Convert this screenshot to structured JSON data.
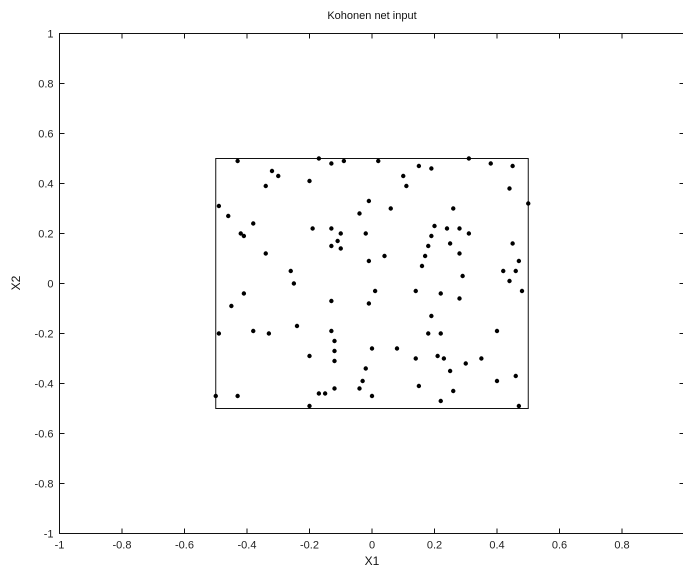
{
  "chart_data": {
    "type": "scatter",
    "title": "Kohonen net input",
    "xlabel": "X1",
    "ylabel": "X2",
    "xlim": [
      -1,
      1
    ],
    "ylim": [
      -1,
      1
    ],
    "x_ticks": [
      "-1",
      "-0.8",
      "-0.6",
      "-0.4",
      "-0.2",
      "0",
      "0.2",
      "0.4",
      "0.6",
      "0.8"
    ],
    "y_ticks": [
      "-1",
      "-0.8",
      "-0.6",
      "-0.4",
      "-0.2",
      "0",
      "0.2",
      "0.4",
      "0.6",
      "0.8",
      "1"
    ],
    "grid": false,
    "inner_box": {
      "x": [
        -0.5,
        0.5
      ],
      "y": [
        -0.5,
        0.5
      ]
    },
    "points": [
      [
        -0.43,
        0.49
      ],
      [
        -0.17,
        0.5
      ],
      [
        -0.13,
        0.48
      ],
      [
        -0.09,
        0.49
      ],
      [
        0.02,
        0.49
      ],
      [
        0.15,
        0.47
      ],
      [
        0.19,
        0.46
      ],
      [
        0.31,
        0.5
      ],
      [
        0.38,
        0.48
      ],
      [
        0.45,
        0.47
      ],
      [
        -0.32,
        0.45
      ],
      [
        -0.3,
        0.43
      ],
      [
        -0.34,
        0.39
      ],
      [
        -0.2,
        0.41
      ],
      [
        0.1,
        0.43
      ],
      [
        0.11,
        0.39
      ],
      [
        0.44,
        0.38
      ],
      [
        -0.49,
        0.31
      ],
      [
        -0.46,
        0.27
      ],
      [
        -0.04,
        0.28
      ],
      [
        -0.01,
        0.33
      ],
      [
        0.06,
        0.3
      ],
      [
        0.26,
        0.3
      ],
      [
        0.5,
        0.32
      ],
      [
        -0.38,
        0.24
      ],
      [
        -0.42,
        0.2
      ],
      [
        -0.41,
        0.19
      ],
      [
        -0.19,
        0.22
      ],
      [
        -0.13,
        0.22
      ],
      [
        -0.1,
        0.2
      ],
      [
        -0.11,
        0.17
      ],
      [
        -0.02,
        0.2
      ],
      [
        0.2,
        0.23
      ],
      [
        0.24,
        0.22
      ],
      [
        0.28,
        0.22
      ],
      [
        0.31,
        0.2
      ],
      [
        0.19,
        0.19
      ],
      [
        -0.13,
        0.15
      ],
      [
        -0.1,
        0.14
      ],
      [
        0.18,
        0.15
      ],
      [
        0.25,
        0.16
      ],
      [
        0.45,
        0.16
      ],
      [
        -0.34,
        0.12
      ],
      [
        0.04,
        0.11
      ],
      [
        0.28,
        0.12
      ],
      [
        0.17,
        0.11
      ],
      [
        -0.01,
        0.09
      ],
      [
        0.47,
        0.09
      ],
      [
        0.16,
        0.07
      ],
      [
        -0.26,
        0.05
      ],
      [
        0.42,
        0.05
      ],
      [
        0.46,
        0.05
      ],
      [
        0.29,
        0.03
      ],
      [
        0.44,
        0.01
      ],
      [
        -0.01,
        -0.08
      ],
      [
        -0.25,
        0.0
      ],
      [
        0.01,
        -0.03
      ],
      [
        0.22,
        -0.04
      ],
      [
        0.14,
        -0.03
      ],
      [
        0.48,
        -0.03
      ],
      [
        -0.41,
        -0.04
      ],
      [
        0.28,
        -0.06
      ],
      [
        -0.45,
        -0.09
      ],
      [
        -0.13,
        -0.07
      ],
      [
        0.19,
        -0.13
      ],
      [
        -0.24,
        -0.17
      ],
      [
        -0.38,
        -0.19
      ],
      [
        -0.33,
        -0.2
      ],
      [
        -0.49,
        -0.2
      ],
      [
        -0.13,
        -0.19
      ],
      [
        0.22,
        -0.2
      ],
      [
        0.4,
        -0.19
      ],
      [
        0.18,
        -0.2
      ],
      [
        0.08,
        -0.26
      ],
      [
        0.0,
        -0.26
      ],
      [
        -0.12,
        -0.23
      ],
      [
        -0.12,
        -0.27
      ],
      [
        -0.2,
        -0.29
      ],
      [
        -0.12,
        -0.31
      ],
      [
        0.14,
        -0.3
      ],
      [
        0.23,
        -0.3
      ],
      [
        0.21,
        -0.29
      ],
      [
        0.35,
        -0.3
      ],
      [
        -0.02,
        -0.34
      ],
      [
        0.25,
        -0.35
      ],
      [
        0.3,
        -0.32
      ],
      [
        0.4,
        -0.39
      ],
      [
        0.46,
        -0.37
      ],
      [
        -0.03,
        -0.39
      ],
      [
        -0.12,
        -0.42
      ],
      [
        -0.15,
        -0.44
      ],
      [
        -0.17,
        -0.44
      ],
      [
        -0.04,
        -0.42
      ],
      [
        0.15,
        -0.41
      ],
      [
        0.26,
        -0.43
      ],
      [
        -0.5,
        -0.45
      ],
      [
        -0.43,
        -0.45
      ],
      [
        0.0,
        -0.45
      ],
      [
        0.22,
        -0.47
      ],
      [
        -0.2,
        -0.49
      ],
      [
        0.47,
        -0.49
      ]
    ]
  }
}
